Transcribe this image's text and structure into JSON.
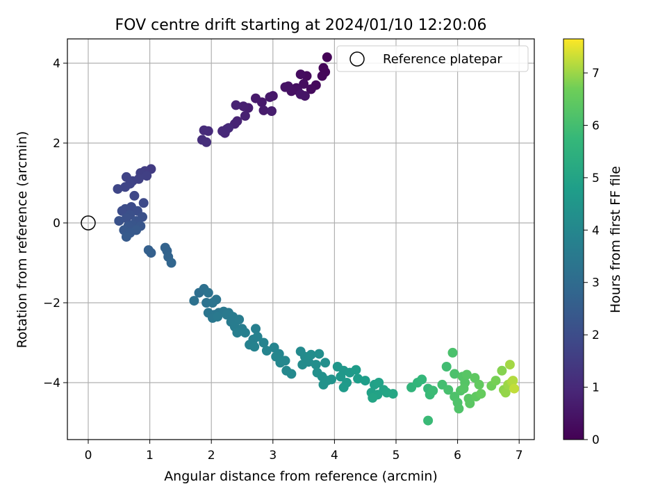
{
  "chart_data": {
    "type": "scatter",
    "title": "FOV centre drift starting at 2024/01/10 12:20:06",
    "xlabel": "Angular distance from reference (arcmin)",
    "ylabel": "Rotation from reference (arcmin)",
    "xlim": [
      -0.35,
      7.25
    ],
    "ylim": [
      -5.5,
      4.6
    ],
    "xticks": [
      "0",
      "1",
      "2",
      "3",
      "4",
      "5",
      "6",
      "7"
    ],
    "yticks": [
      "−4",
      "−2",
      "0",
      "2",
      "4"
    ],
    "grid": true,
    "legend": {
      "placement": "top-right",
      "entries": [
        "Reference platepar"
      ]
    },
    "colorbar": {
      "label": "Hours from first FF file",
      "range": [
        0,
        7.65
      ],
      "colormap": "viridis",
      "ticks": [
        "0",
        "1",
        "2",
        "3",
        "4",
        "5",
        "6",
        "7"
      ]
    },
    "reference_point": {
      "x": 0,
      "y": 0,
      "label": "Reference platepar"
    },
    "points": [
      [
        3.88,
        4.15,
        0.05
      ],
      [
        3.82,
        3.88,
        0.1
      ],
      [
        3.85,
        3.78,
        0.12
      ],
      [
        3.8,
        3.68,
        0.15
      ],
      [
        3.7,
        3.45,
        0.2
      ],
      [
        3.62,
        3.35,
        0.25
      ],
      [
        3.55,
        3.68,
        0.22
      ],
      [
        3.45,
        3.72,
        0.28
      ],
      [
        3.5,
        3.48,
        0.3
      ],
      [
        3.38,
        3.38,
        0.35
      ],
      [
        3.4,
        3.32,
        0.38
      ],
      [
        3.3,
        3.3,
        0.4
      ],
      [
        3.25,
        3.42,
        0.42
      ],
      [
        3.2,
        3.4,
        0.45
      ],
      [
        3.52,
        3.18,
        0.48
      ],
      [
        3.45,
        3.22,
        0.5
      ],
      [
        3.0,
        3.18,
        0.55
      ],
      [
        2.95,
        3.15,
        0.58
      ],
      [
        2.82,
        3.02,
        0.6
      ],
      [
        2.72,
        3.12,
        0.62
      ],
      [
        2.85,
        2.82,
        0.65
      ],
      [
        2.98,
        2.8,
        0.7
      ],
      [
        2.6,
        2.88,
        0.72
      ],
      [
        2.52,
        2.92,
        0.75
      ],
      [
        2.55,
        2.68,
        0.78
      ],
      [
        2.4,
        2.95,
        0.82
      ],
      [
        2.42,
        2.55,
        0.85
      ],
      [
        2.38,
        2.48,
        0.88
      ],
      [
        2.25,
        2.35,
        0.9
      ],
      [
        2.22,
        2.25,
        0.95
      ],
      [
        2.18,
        2.3,
        1.0
      ],
      [
        2.28,
        2.38,
        1.02
      ],
      [
        1.95,
        2.3,
        1.05
      ],
      [
        1.88,
        2.32,
        1.08
      ],
      [
        1.85,
        2.08,
        1.12
      ],
      [
        1.92,
        2.02,
        1.15
      ],
      [
        1.02,
        1.35,
        1.5
      ],
      [
        0.92,
        1.3,
        1.55
      ],
      [
        0.85,
        1.25,
        1.6
      ],
      [
        0.95,
        1.18,
        1.62
      ],
      [
        0.82,
        1.1,
        1.65
      ],
      [
        0.72,
        1.05,
        1.7
      ],
      [
        0.62,
        1.15,
        1.72
      ],
      [
        0.68,
        0.98,
        1.75
      ],
      [
        0.6,
        0.9,
        1.78
      ],
      [
        0.48,
        0.85,
        1.8
      ],
      [
        0.75,
        0.68,
        1.85
      ],
      [
        0.9,
        0.5,
        1.9
      ],
      [
        0.7,
        0.4,
        1.95
      ],
      [
        0.6,
        0.35,
        2.0
      ],
      [
        0.55,
        0.3,
        2.02
      ],
      [
        0.8,
        0.3,
        2.05
      ],
      [
        0.68,
        0.2,
        2.1
      ],
      [
        0.88,
        0.15,
        2.12
      ],
      [
        0.62,
        0.12,
        2.15
      ],
      [
        0.5,
        0.05,
        2.18
      ],
      [
        0.78,
        0.05,
        2.2
      ],
      [
        0.72,
        -0.05,
        2.25
      ],
      [
        0.65,
        -0.08,
        2.28
      ],
      [
        0.85,
        -0.08,
        2.3
      ],
      [
        0.58,
        -0.18,
        2.35
      ],
      [
        0.78,
        -0.18,
        2.38
      ],
      [
        0.68,
        -0.25,
        2.4
      ],
      [
        0.62,
        -0.35,
        2.45
      ],
      [
        0.98,
        -0.68,
        2.6
      ],
      [
        1.02,
        -0.75,
        2.62
      ],
      [
        1.25,
        -0.62,
        2.7
      ],
      [
        1.28,
        -0.7,
        2.72
      ],
      [
        1.3,
        -0.85,
        2.75
      ],
      [
        1.35,
        -1.0,
        2.8
      ],
      [
        1.8,
        -1.75,
        3.1
      ],
      [
        1.88,
        -1.65,
        3.15
      ],
      [
        1.72,
        -1.95,
        3.2
      ],
      [
        1.95,
        -1.75,
        3.22
      ],
      [
        1.92,
        -2.0,
        3.25
      ],
      [
        2.08,
        -1.92,
        3.3
      ],
      [
        2.02,
        -2.0,
        3.32
      ],
      [
        1.95,
        -2.25,
        3.35
      ],
      [
        2.05,
        -2.3,
        3.38
      ],
      [
        2.12,
        -2.25,
        3.4
      ],
      [
        2.02,
        -2.38,
        3.42
      ],
      [
        2.2,
        -2.22,
        3.45
      ],
      [
        2.28,
        -2.25,
        3.48
      ],
      [
        2.1,
        -2.35,
        3.5
      ],
      [
        2.25,
        -2.3,
        3.52
      ],
      [
        2.35,
        -2.35,
        3.55
      ],
      [
        2.32,
        -2.48,
        3.58
      ],
      [
        2.45,
        -2.42,
        3.6
      ],
      [
        2.38,
        -2.6,
        3.62
      ],
      [
        2.5,
        -2.65,
        3.65
      ],
      [
        2.42,
        -2.75,
        3.68
      ],
      [
        2.55,
        -2.75,
        3.7
      ],
      [
        2.72,
        -2.65,
        3.72
      ],
      [
        2.68,
        -2.92,
        3.75
      ],
      [
        2.75,
        -2.85,
        3.78
      ],
      [
        2.62,
        -3.05,
        3.8
      ],
      [
        2.7,
        -3.1,
        3.82
      ],
      [
        2.85,
        -3.0,
        3.85
      ],
      [
        2.9,
        -3.2,
        3.88
      ],
      [
        3.02,
        -3.12,
        3.9
      ],
      [
        3.1,
        -3.28,
        3.92
      ],
      [
        3.05,
        -3.35,
        3.95
      ],
      [
        3.12,
        -3.5,
        3.98
      ],
      [
        3.2,
        -3.45,
        4.0
      ],
      [
        3.22,
        -3.7,
        4.02
      ],
      [
        3.3,
        -3.78,
        4.05
      ],
      [
        3.45,
        -3.22,
        4.1
      ],
      [
        3.52,
        -3.35,
        4.12
      ],
      [
        3.58,
        -3.48,
        4.15
      ],
      [
        3.48,
        -3.55,
        4.18
      ],
      [
        3.62,
        -3.3,
        4.2
      ],
      [
        3.75,
        -3.28,
        4.22
      ],
      [
        3.7,
        -3.55,
        4.25
      ],
      [
        3.85,
        -3.5,
        4.28
      ],
      [
        3.72,
        -3.75,
        4.3
      ],
      [
        3.8,
        -3.85,
        4.32
      ],
      [
        3.88,
        -3.95,
        4.35
      ],
      [
        3.82,
        -4.05,
        4.38
      ],
      [
        3.95,
        -3.92,
        4.42
      ],
      [
        4.05,
        -3.6,
        4.5
      ],
      [
        4.15,
        -3.7,
        4.55
      ],
      [
        4.1,
        -3.85,
        4.58
      ],
      [
        4.25,
        -3.75,
        4.62
      ],
      [
        4.2,
        -4.0,
        4.65
      ],
      [
        4.15,
        -4.12,
        4.68
      ],
      [
        4.35,
        -3.68,
        4.72
      ],
      [
        4.38,
        -3.9,
        4.75
      ],
      [
        4.5,
        -3.95,
        4.8
      ],
      [
        4.65,
        -4.05,
        4.85
      ],
      [
        4.6,
        -4.25,
        4.9
      ],
      [
        4.72,
        -4.0,
        4.92
      ],
      [
        4.7,
        -4.3,
        4.95
      ],
      [
        4.8,
        -4.18,
        4.98
      ],
      [
        4.62,
        -4.38,
        5.0
      ],
      [
        4.85,
        -4.25,
        5.05
      ],
      [
        4.95,
        -4.28,
        5.1
      ],
      [
        5.25,
        -4.12,
        5.6
      ],
      [
        5.35,
        -4.0,
        5.65
      ],
      [
        5.42,
        -3.92,
        5.7
      ],
      [
        5.52,
        -4.15,
        5.75
      ],
      [
        5.55,
        -4.3,
        5.8
      ],
      [
        5.6,
        -4.2,
        5.85
      ],
      [
        5.52,
        -4.95,
        5.82
      ],
      [
        5.82,
        -3.6,
        5.95
      ],
      [
        5.75,
        -4.05,
        6.0
      ],
      [
        5.85,
        -4.18,
        6.05
      ],
      [
        5.92,
        -3.25,
        6.1
      ],
      [
        5.95,
        -3.78,
        6.12
      ],
      [
        5.95,
        -4.35,
        6.15
      ],
      [
        6.0,
        -4.5,
        6.18
      ],
      [
        6.02,
        -4.65,
        6.2
      ],
      [
        6.05,
        -4.2,
        6.22
      ],
      [
        6.08,
        -3.85,
        6.25
      ],
      [
        6.12,
        -4.0,
        6.28
      ],
      [
        6.1,
        -4.15,
        6.3
      ],
      [
        6.15,
        -3.8,
        6.32
      ],
      [
        6.18,
        -4.4,
        6.35
      ],
      [
        6.2,
        -4.52,
        6.38
      ],
      [
        6.28,
        -3.88,
        6.42
      ],
      [
        6.3,
        -4.35,
        6.45
      ],
      [
        6.35,
        -4.05,
        6.5
      ],
      [
        6.38,
        -4.28,
        6.55
      ],
      [
        6.55,
        -4.08,
        6.7
      ],
      [
        6.62,
        -3.95,
        6.75
      ],
      [
        6.72,
        -3.7,
        6.85
      ],
      [
        6.75,
        -4.18,
        6.9
      ],
      [
        6.78,
        -4.25,
        6.95
      ],
      [
        6.82,
        -4.05,
        7.0
      ],
      [
        6.85,
        -3.55,
        7.05
      ],
      [
        6.88,
        -3.98,
        7.1
      ],
      [
        6.9,
        -3.95,
        7.15
      ],
      [
        6.92,
        -4.15,
        7.25
      ]
    ]
  }
}
